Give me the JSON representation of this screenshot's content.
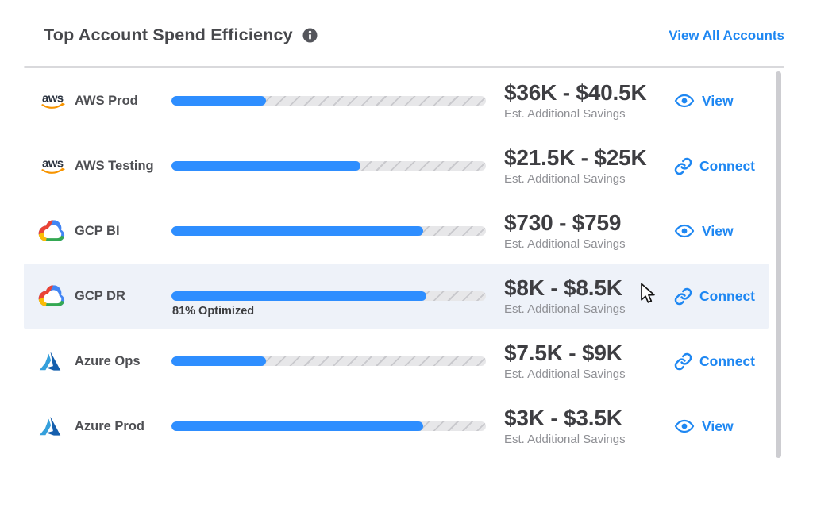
{
  "header": {
    "title": "Top Account Spend Efficiency",
    "info_icon": "info-icon",
    "view_all_label": "View All Accounts"
  },
  "savings_caption": "Est. Additional Savings",
  "accounts": [
    {
      "name": "AWS Prod",
      "provider": "aws",
      "provider_icon": "aws-logo-icon",
      "optimized_pct": 30,
      "savings_range": "$36K - $40.5K",
      "action": "View",
      "action_icon": "eye-icon",
      "highlighted": false
    },
    {
      "name": "AWS Testing",
      "provider": "aws",
      "provider_icon": "aws-logo-icon",
      "optimized_pct": 60,
      "savings_range": "$21.5K - $25K",
      "action": "Connect",
      "action_icon": "link-icon",
      "highlighted": false
    },
    {
      "name": "GCP BI",
      "provider": "gcp",
      "provider_icon": "gcp-logo-icon",
      "optimized_pct": 80,
      "savings_range": "$730 - $759",
      "action": "View",
      "action_icon": "eye-icon",
      "highlighted": false
    },
    {
      "name": "GCP DR",
      "provider": "gcp",
      "provider_icon": "gcp-logo-icon",
      "optimized_pct": 81,
      "savings_range": "$8K - $8.5K",
      "action": "Connect",
      "action_icon": "link-icon",
      "highlighted": true,
      "optimized_label": "81% Optimized"
    },
    {
      "name": "Azure Ops",
      "provider": "azure",
      "provider_icon": "azure-logo-icon",
      "optimized_pct": 30,
      "savings_range": "$7.5K - $9K",
      "action": "Connect",
      "action_icon": "link-icon",
      "highlighted": false
    },
    {
      "name": "Azure Prod",
      "provider": "azure",
      "provider_icon": "azure-logo-icon",
      "optimized_pct": 80,
      "savings_range": "$3K - $3.5K",
      "action": "View",
      "action_icon": "eye-icon",
      "highlighted": false
    }
  ],
  "colors": {
    "accent_blue": "#1e87f2",
    "bar_fill": "#2e8eff",
    "bar_track": "#e7e7e9",
    "bar_hatch": "#c9c9cd",
    "row_highlight": "#eef2f9",
    "scrollbar": "#cdcdd1"
  }
}
